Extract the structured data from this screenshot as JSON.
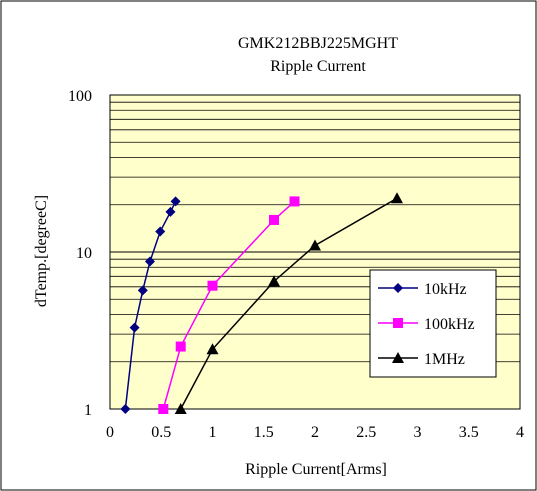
{
  "chart_data": {
    "type": "line",
    "title": "GMK212BBJ225MGHT",
    "subtitle": "Ripple Current",
    "xlabel": "Ripple Current[Arms]",
    "ylabel": "dTemp.[degreeC]",
    "xlim": [
      0,
      4
    ],
    "ylim": [
      1,
      100
    ],
    "yscale": "log",
    "grid": true,
    "legend_position": "right",
    "x_ticks": [
      "0",
      "0.5",
      "1",
      "1.5",
      "2",
      "2.5",
      "3",
      "3.5",
      "4"
    ],
    "y_ticks": [
      "1",
      "10",
      "100"
    ],
    "plot_background": "#ffffcc",
    "series": [
      {
        "name": "10kHz",
        "color": "#000080",
        "marker": "diamond",
        "x": [
          0.15,
          0.24,
          0.32,
          0.39,
          0.49,
          0.59,
          0.64
        ],
        "y": [
          1.0,
          3.3,
          5.7,
          8.7,
          13.5,
          18.0,
          21.0
        ]
      },
      {
        "name": "100kHz",
        "color": "#ff00ff",
        "marker": "square",
        "x": [
          0.52,
          0.69,
          1.0,
          1.6,
          1.8
        ],
        "y": [
          1.0,
          2.5,
          6.1,
          16.0,
          21.0
        ]
      },
      {
        "name": "1MHz",
        "color": "#000000",
        "marker": "triangle",
        "x": [
          0.69,
          1.0,
          1.6,
          2.0,
          2.8
        ],
        "y": [
          1.0,
          2.4,
          6.5,
          11.0,
          22.0
        ]
      }
    ]
  }
}
